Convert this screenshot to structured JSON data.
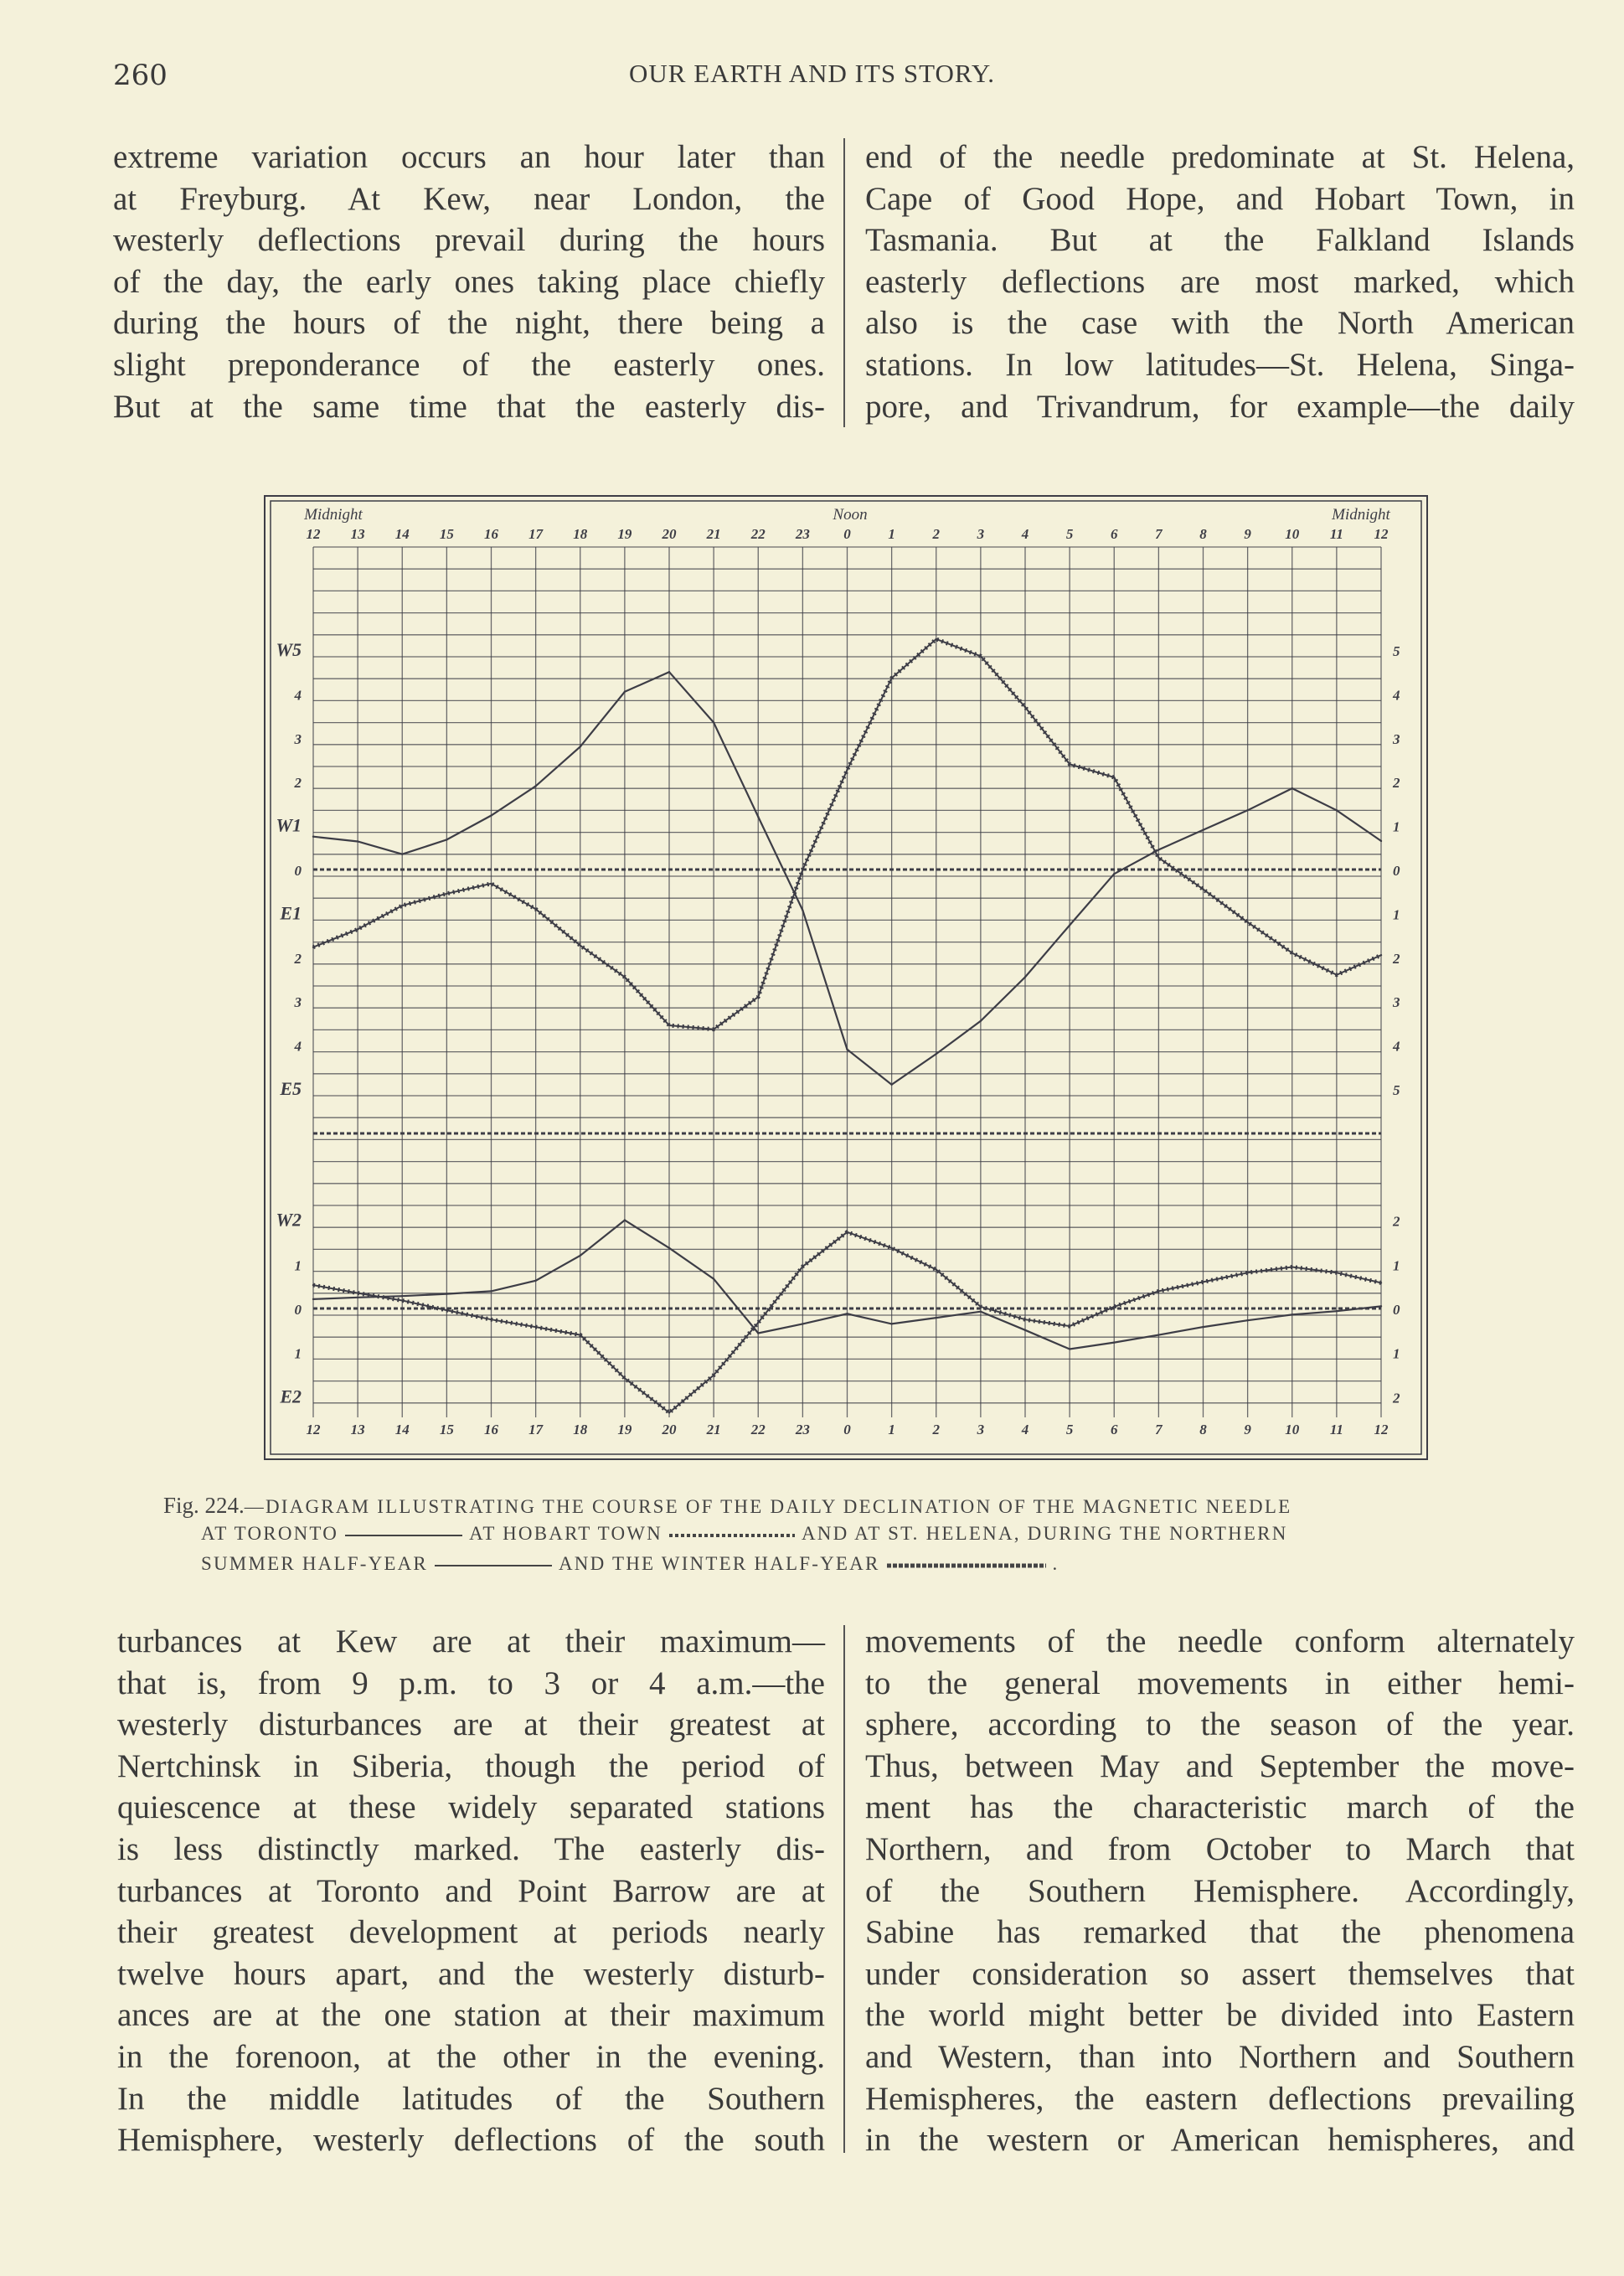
{
  "header": {
    "page_number": "260",
    "running_title": "OUR EARTH AND ITS STORY."
  },
  "top_left": [
    "extreme variation occurs an hour later than",
    "at Freyburg.  At Kew, near London, the",
    "westerly deflections prevail during the hours",
    "of the day, the early ones taking place chiefly",
    "during the hours of the night, there being a",
    "slight preponderance of the easterly ones.",
    "But at the same time that the easterly dis-"
  ],
  "top_right": [
    "end of the needle predominate at St. Helena,",
    "Cape of Good Hope, and Hobart Town, in",
    "Tasmania.  But at the Falkland Islands",
    "easterly deflections are most marked, which",
    "also is the case with the North American",
    "stations.  In low latitudes—St. Helena, Singa-",
    "pore, and Trivandrum, for example—the daily"
  ],
  "bottom_left": [
    "turbances at Kew are at their maximum—",
    "that is, from 9 p.m. to 3 or 4 a.m.—the",
    "westerly disturbances are at their greatest at",
    "Nertchinsk in Siberia, though the period of",
    "quiescence at these widely separated stations",
    "is less distinctly marked.  The easterly dis-",
    "turbances at Toronto and Point Barrow are at",
    "their greatest development at periods nearly",
    "twelve hours apart, and the westerly disturb-",
    "ances are at the one station at their maximum",
    "in the forenoon, at the other in the evening.",
    "In the middle latitudes of the Southern",
    "Hemisphere, westerly deflections of the south"
  ],
  "bottom_right": [
    "movements of the needle conform alternately",
    "to the general movements in either hemi-",
    "sphere, according to the season of the year.",
    "Thus, between May and September the move-",
    "ment has the characteristic march of the",
    "Northern, and from October to March that",
    "of the Southern Hemisphere.  Accordingly,",
    "Sabine has remarked that the phenomena",
    "under consideration so assert themselves that",
    "the world might better be divided into Eastern",
    "and Western, than into Northern and Southern",
    "Hemispheres, the eastern deflections prevailing",
    "in the western or American hemispheres, and"
  ],
  "caption": {
    "fig": "Fig. 224.",
    "line1": "—DIAGRAM ILLUSTRATING THE COURSE OF THE DAILY DECLINATION OF THE MAGNETIC NEEDLE",
    "line2a": "AT TORONTO",
    "line2b": "AT HOBART TOWN",
    "line2c": "AND AT ST. HELENA, DURING THE NORTHERN",
    "line3a": "SUMMER HALF-YEAR",
    "line3b": "AND THE WINTER HALF-YEAR",
    "line3c": "."
  },
  "chart_data": {
    "type": "line",
    "top_labels": {
      "left": "Midnight",
      "center": "Noon",
      "right": "Midnight"
    },
    "x": [
      "12",
      "13",
      "14",
      "15",
      "16",
      "17",
      "18",
      "19",
      "20",
      "21",
      "22",
      "23",
      "0",
      "1",
      "2",
      "3",
      "4",
      "5",
      "6",
      "7",
      "8",
      "9",
      "10",
      "11",
      "12"
    ],
    "bottom_tick_labels": [
      "12",
      "13",
      "14",
      "15",
      "16",
      "17",
      "18",
      "19",
      "20",
      "21",
      "22",
      "23",
      "0",
      "1",
      "2",
      "3",
      "4",
      "5",
      "6",
      "7",
      "8",
      "9",
      "10",
      "11",
      "12"
    ],
    "panels": [
      {
        "ylim": [
          -5,
          5
        ],
        "left_labels": [
          "W5",
          "4",
          "3",
          "2",
          "W1",
          "0",
          "E1",
          "2",
          "3",
          "4",
          "E5"
        ],
        "right_labels": [
          "5",
          "4",
          "3",
          "2",
          "1",
          "0",
          "1",
          "2",
          "3",
          "4",
          "5"
        ],
        "series": [
          {
            "name": "AT TORONTO",
            "style": "solid",
            "values": [
              0.75,
              0.64,
              0.35,
              0.68,
              1.23,
              1.9,
              2.8,
              4.05,
              4.5,
              3.35,
              1.2,
              -0.93,
              -4.1,
              -4.9,
              -4.2,
              -3.45,
              -2.45,
              -1.27,
              -0.1,
              0.45,
              0.9,
              1.35,
              1.85,
              1.35,
              0.65
            ]
          },
          {
            "name": "AT HOBART TOWN",
            "style": "dotted",
            "values": [
              -1.77,
              -1.36,
              -0.82,
              -0.55,
              -0.32,
              -0.9,
              -1.73,
              -2.45,
              -3.55,
              -3.64,
              -2.9,
              0,
              2.27,
              4.36,
              5.25,
              4.86,
              3.7,
              2.4,
              2.1,
              0.27,
              -0.45,
              -1.2,
              -1.9,
              -2.4,
              -1.95
            ]
          }
        ]
      },
      {
        "ylim": [
          -2,
          2
        ],
        "left_labels": [
          "W2",
          "1",
          "0",
          "1",
          "E2"
        ],
        "right_labels": [
          "2",
          "1",
          "0",
          "1",
          "2"
        ],
        "series": [
          {
            "name": "ST. HELENA SUMMER HALF-YEAR",
            "style": "solid",
            "values": [
              0.21,
              0.25,
              0.28,
              0.33,
              0.39,
              0.63,
              1.2,
              2.0,
              1.37,
              0.67,
              -0.56,
              -0.35,
              -0.12,
              -0.35,
              -0.21,
              -0.07,
              -0.49,
              -0.92,
              -0.77,
              -0.6,
              -0.42,
              -0.27,
              -0.14,
              -0.06,
              0.05
            ]
          },
          {
            "name": "ST. HELENA WINTER HALF-YEAR",
            "style": "dotted",
            "values": [
              0.53,
              0.35,
              0.18,
              -0.04,
              -0.25,
              -0.42,
              -0.6,
              -1.58,
              -2.36,
              -1.51,
              -0.32,
              0.95,
              1.73,
              1.37,
              0.88,
              0.04,
              -0.25,
              -0.4,
              0.04,
              0.39,
              0.6,
              0.81,
              0.94,
              0.81,
              0.58
            ]
          }
        ]
      }
    ],
    "grid": true,
    "colors": {
      "ink": "#3d3d46",
      "paper": "#f4f1da"
    }
  }
}
